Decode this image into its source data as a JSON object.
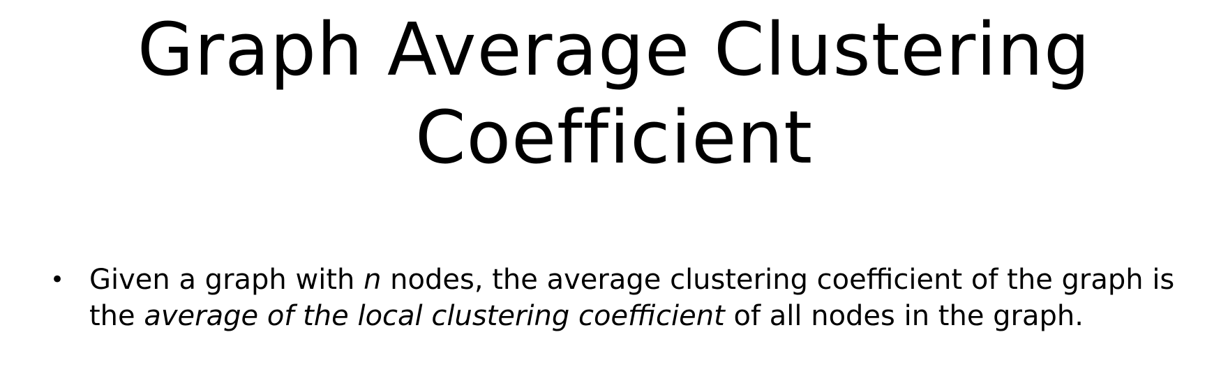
{
  "slide": {
    "title_line1": "Graph Average Clustering",
    "title_line2": "Coefficient",
    "bullet_marker": "•",
    "bullet1": {
      "part1": "Given a graph with ",
      "n": "n",
      "part2": " nodes, the average clustering coefficient of the graph is the ",
      "emphasis": "average of the local clustering coefficient",
      "part3": " of all nodes in the graph."
    }
  }
}
